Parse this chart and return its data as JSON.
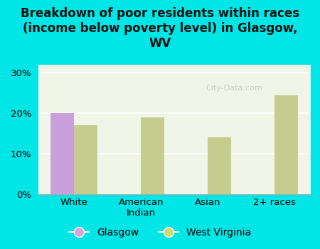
{
  "title": "Breakdown of poor residents within races\n(income below poverty level) in Glasgow,\nWV",
  "categories": [
    "White",
    "American\nIndian",
    "Asian",
    "2+ races"
  ],
  "glasgow_values": [
    20.0,
    0,
    0,
    0
  ],
  "wv_values": [
    17.0,
    19.0,
    14.0,
    24.5
  ],
  "glasgow_color": "#c9a0dc",
  "wv_color": "#c5cc8e",
  "background_color": "#00e5e5",
  "plot_bg": "#f0f5e8",
  "ylim": [
    0,
    32
  ],
  "yticks": [
    0,
    10,
    20,
    30
  ],
  "bar_width": 0.35,
  "title_fontsize": 12,
  "legend_glasgow_color": "#d9a0d9",
  "legend_wv_color": "#d4d966",
  "watermark": "City-Data.com"
}
